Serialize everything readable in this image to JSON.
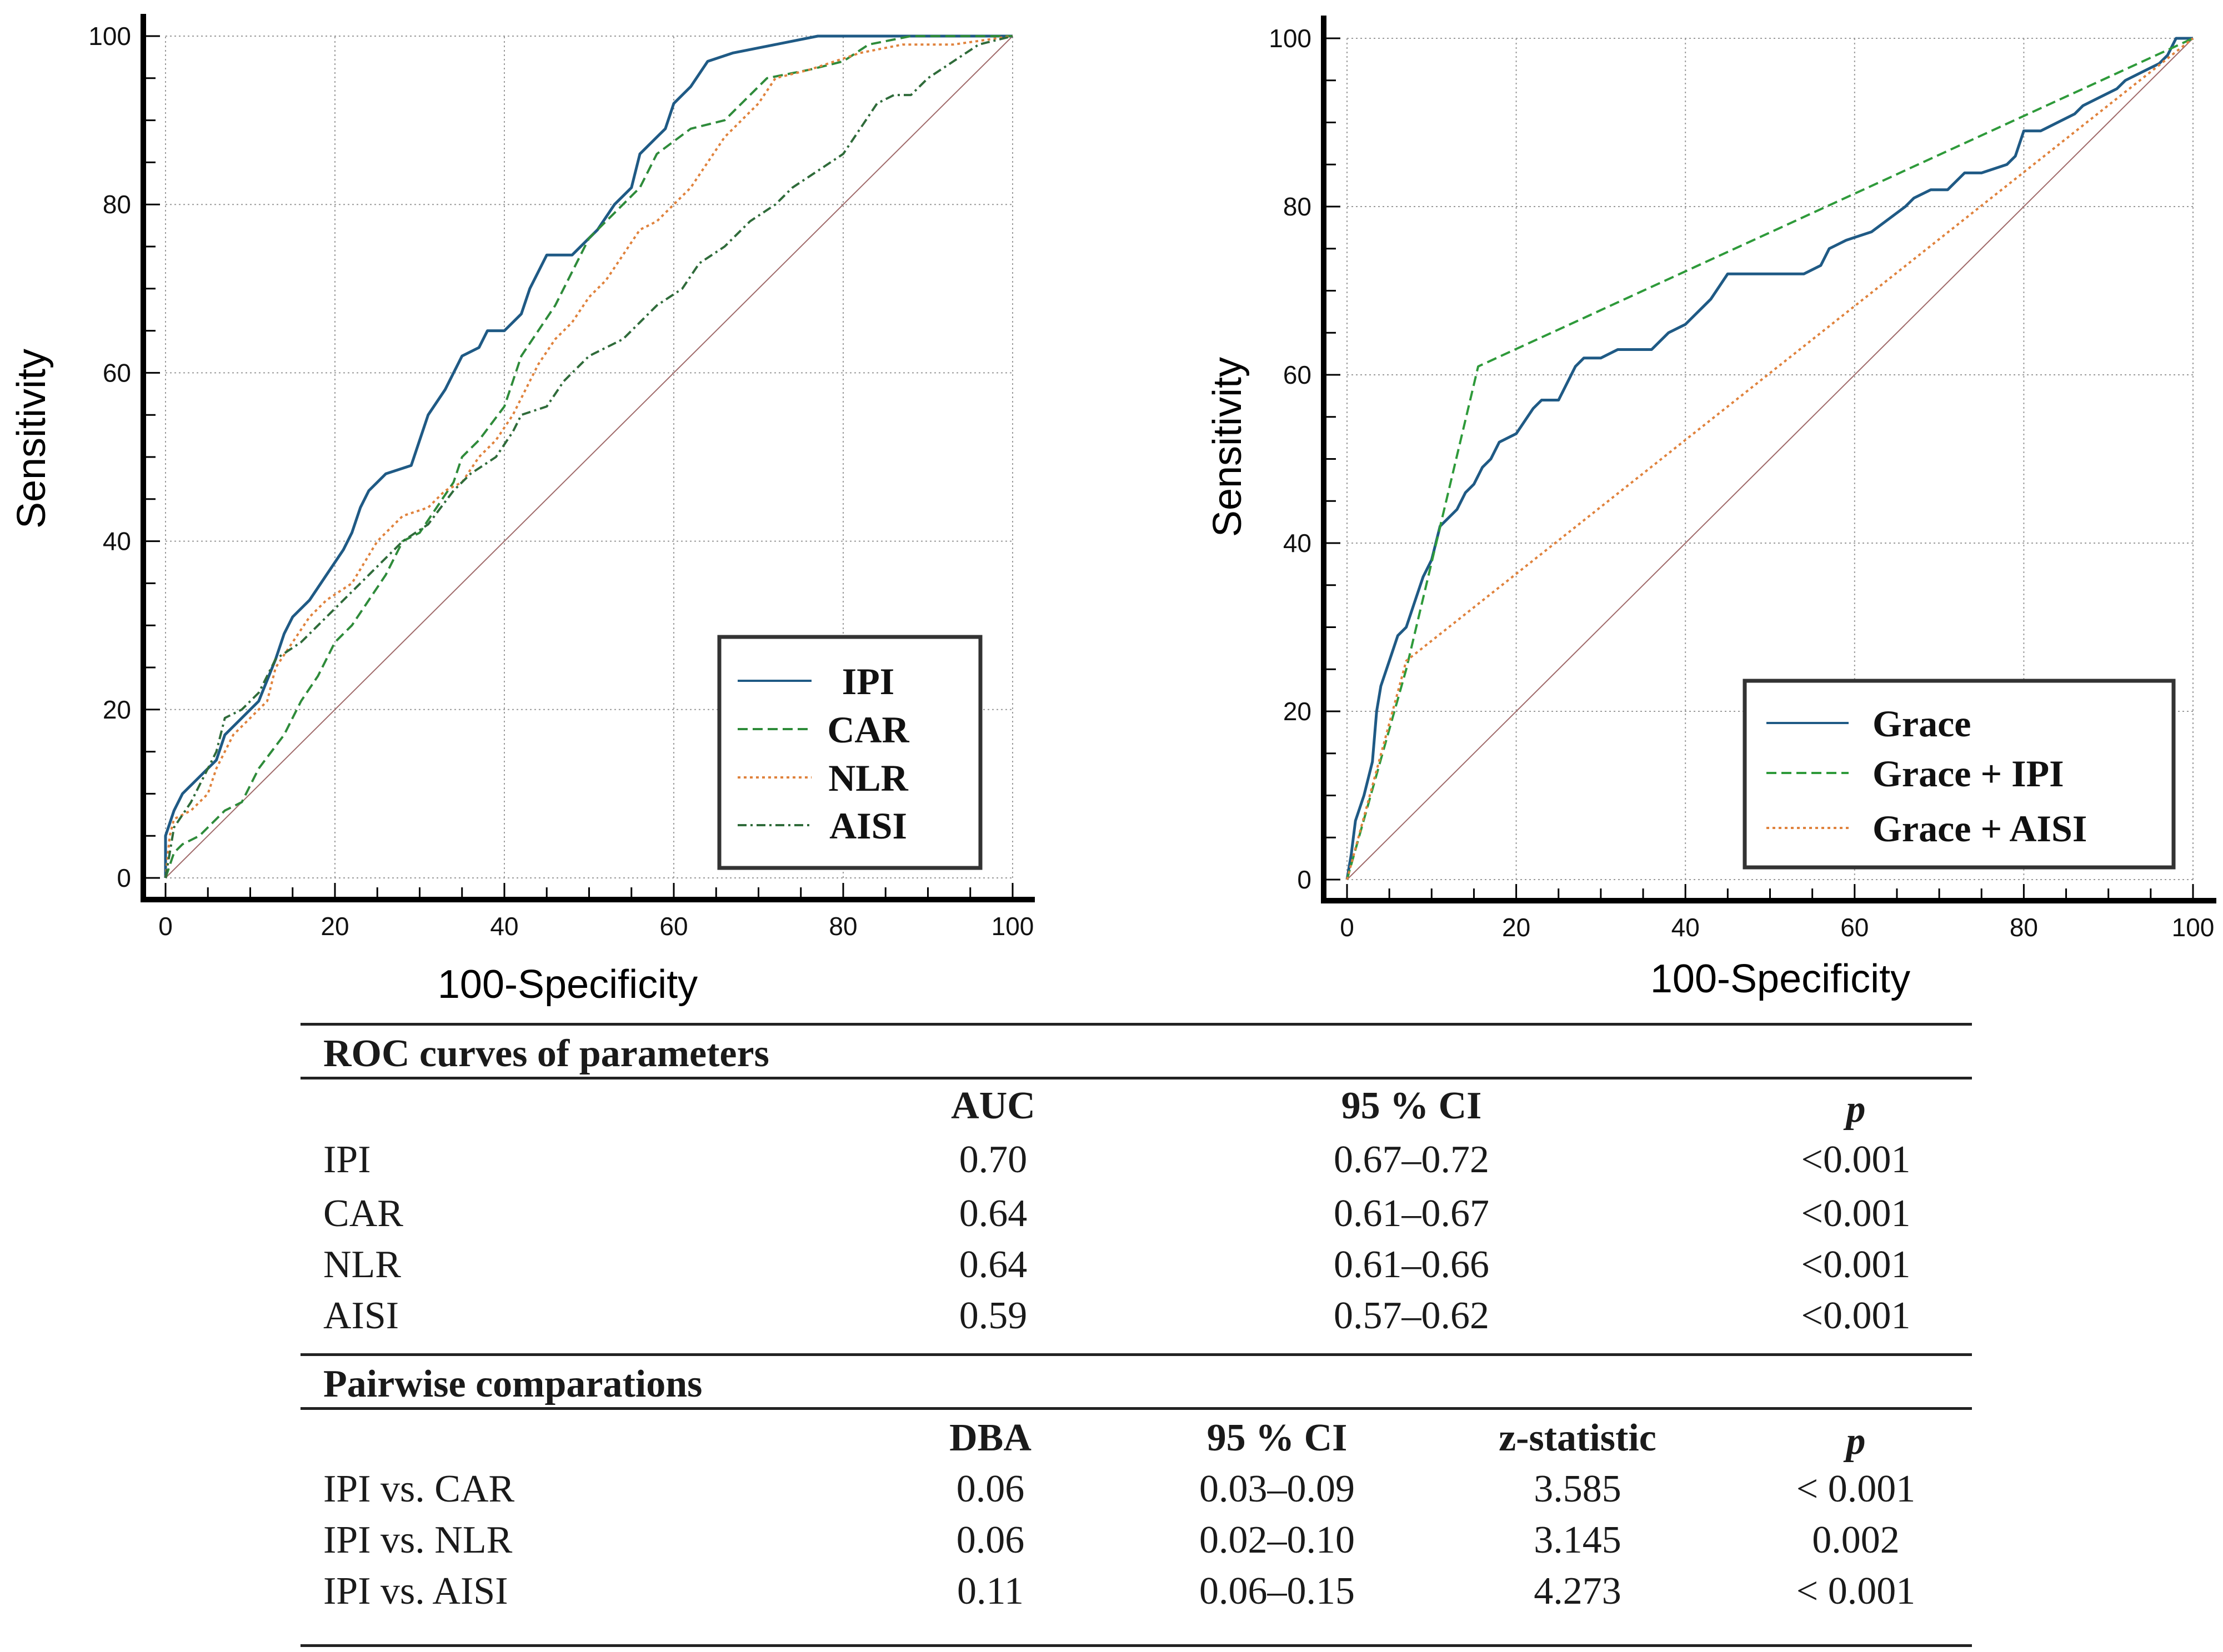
{
  "colors": {
    "ipi": "#1f5a85",
    "car": "#2e8b3a",
    "nlr": "#e0823c",
    "aisi": "#2f6b3a",
    "grace": "#1f5a85",
    "grace_ipi": "#2e9a3a",
    "grace_aisi": "#e0823c",
    "diagonal": "#a06a6a",
    "grid": "#9a9a9a",
    "axis": "#000000"
  },
  "chart_data": [
    {
      "type": "line",
      "xlabel": "100-Specificity",
      "ylabel": "Sensitivity",
      "xlim": [
        0,
        100
      ],
      "ylim": [
        0,
        100
      ],
      "xticks": [
        "0",
        "20",
        "40",
        "60",
        "80",
        "100"
      ],
      "yticks": [
        "0",
        "20",
        "40",
        "60",
        "80",
        "100"
      ],
      "grid": true,
      "legend_position": "bottom-right",
      "series": [
        {
          "name": "IPI",
          "key": "ipi",
          "dash": "solid",
          "points": [
            [
              0,
              0
            ],
            [
              0,
              5
            ],
            [
              1,
              8
            ],
            [
              2,
              10
            ],
            [
              4,
              12
            ],
            [
              6,
              14
            ],
            [
              7,
              17
            ],
            [
              9,
              19
            ],
            [
              11,
              21
            ],
            [
              13,
              26
            ],
            [
              14,
              29
            ],
            [
              15,
              31
            ],
            [
              17,
              33
            ],
            [
              19,
              36
            ],
            [
              21,
              39
            ],
            [
              22,
              41
            ],
            [
              23,
              44
            ],
            [
              24,
              46
            ],
            [
              26,
              48
            ],
            [
              29,
              49
            ],
            [
              30,
              52
            ],
            [
              31,
              55
            ],
            [
              33,
              58
            ],
            [
              35,
              62
            ],
            [
              37,
              63
            ],
            [
              38,
              65
            ],
            [
              40,
              65
            ],
            [
              42,
              67
            ],
            [
              43,
              70
            ],
            [
              45,
              74
            ],
            [
              48,
              74
            ],
            [
              51,
              77
            ],
            [
              53,
              80
            ],
            [
              55,
              82
            ],
            [
              56,
              86
            ],
            [
              58,
              88
            ],
            [
              59,
              89
            ],
            [
              60,
              92
            ],
            [
              62,
              94
            ],
            [
              64,
              97
            ],
            [
              67,
              98
            ],
            [
              72,
              99
            ],
            [
              77,
              100
            ],
            [
              100,
              100
            ]
          ]
        },
        {
          "name": "CAR",
          "key": "car",
          "dash": "dashed",
          "points": [
            [
              0,
              0
            ],
            [
              1,
              3
            ],
            [
              2,
              4
            ],
            [
              4,
              5
            ],
            [
              5,
              6
            ],
            [
              7,
              8
            ],
            [
              9,
              9
            ],
            [
              11,
              13
            ],
            [
              14,
              17
            ],
            [
              16,
              21
            ],
            [
              18,
              24
            ],
            [
              20,
              28
            ],
            [
              22,
              30
            ],
            [
              24,
              33
            ],
            [
              26,
              36
            ],
            [
              28,
              40
            ],
            [
              30,
              41
            ],
            [
              32,
              44
            ],
            [
              34,
              47
            ],
            [
              35,
              50
            ],
            [
              37,
              52
            ],
            [
              40,
              56
            ],
            [
              41,
              59
            ],
            [
              42,
              62
            ],
            [
              44,
              65
            ],
            [
              46,
              68
            ],
            [
              48,
              72
            ],
            [
              50,
              76
            ],
            [
              53,
              79
            ],
            [
              56,
              82
            ],
            [
              58,
              86
            ],
            [
              62,
              89
            ],
            [
              66,
              90
            ],
            [
              69,
              93
            ],
            [
              71,
              95
            ],
            [
              76,
              96
            ],
            [
              80,
              97
            ],
            [
              83,
              99
            ],
            [
              88,
              100
            ],
            [
              100,
              100
            ]
          ]
        },
        {
          "name": "NLR",
          "key": "nlr",
          "dash": "dotted",
          "points": [
            [
              0,
              0
            ],
            [
              0.5,
              5
            ],
            [
              1,
              7
            ],
            [
              3,
              8
            ],
            [
              5,
              10
            ],
            [
              6,
              13
            ],
            [
              8,
              17
            ],
            [
              10,
              19
            ],
            [
              12,
              21
            ],
            [
              13,
              25
            ],
            [
              15,
              28
            ],
            [
              17,
              31
            ],
            [
              19,
              33
            ],
            [
              22,
              35
            ],
            [
              25,
              40
            ],
            [
              28,
              43
            ],
            [
              31,
              44
            ],
            [
              33,
              46
            ],
            [
              35,
              47
            ],
            [
              37,
              50
            ],
            [
              39,
              52
            ],
            [
              41,
              55
            ],
            [
              42,
              57
            ],
            [
              44,
              61
            ],
            [
              46,
              64
            ],
            [
              48,
              66
            ],
            [
              50,
              69
            ],
            [
              52,
              71
            ],
            [
              54,
              74
            ],
            [
              56,
              77
            ],
            [
              58,
              78
            ],
            [
              60,
              80
            ],
            [
              62,
              82
            ],
            [
              64,
              85
            ],
            [
              66,
              88
            ],
            [
              68,
              90
            ],
            [
              70,
              92
            ],
            [
              72,
              95
            ],
            [
              76,
              96
            ],
            [
              79,
              97
            ],
            [
              82,
              98
            ],
            [
              87,
              99
            ],
            [
              93,
              99
            ],
            [
              100,
              100
            ]
          ]
        },
        {
          "name": "AISI",
          "key": "aisi",
          "dash": "dashdot",
          "points": [
            [
              0,
              0
            ],
            [
              1,
              6
            ],
            [
              3,
              9
            ],
            [
              5,
              13
            ],
            [
              6,
              15
            ],
            [
              7,
              19
            ],
            [
              9,
              20
            ],
            [
              11,
              22
            ],
            [
              13,
              26
            ],
            [
              16,
              28
            ],
            [
              19,
              31
            ],
            [
              22,
              34
            ],
            [
              25,
              37
            ],
            [
              28,
              40
            ],
            [
              31,
              42
            ],
            [
              34,
              46
            ],
            [
              36,
              48
            ],
            [
              39,
              50
            ],
            [
              41,
              53
            ],
            [
              42,
              55
            ],
            [
              45,
              56
            ],
            [
              47,
              59
            ],
            [
              50,
              62
            ],
            [
              54,
              64
            ],
            [
              56,
              66
            ],
            [
              58,
              68
            ],
            [
              61,
              70
            ],
            [
              63,
              73
            ],
            [
              66,
              75
            ],
            [
              69,
              78
            ],
            [
              72,
              80
            ],
            [
              74,
              82
            ],
            [
              77,
              84
            ],
            [
              80,
              86
            ],
            [
              82,
              89
            ],
            [
              84,
              92
            ],
            [
              86,
              93
            ],
            [
              88,
              93
            ],
            [
              90,
              95
            ],
            [
              93,
              97
            ],
            [
              96,
              99
            ],
            [
              100,
              100
            ]
          ]
        }
      ]
    },
    {
      "type": "line",
      "xlabel": "100-Specificity",
      "ylabel": "Sensitivity",
      "xlim": [
        0,
        100
      ],
      "ylim": [
        0,
        100
      ],
      "xticks": [
        "0",
        "20",
        "40",
        "60",
        "80",
        "100"
      ],
      "yticks": [
        "0",
        "20",
        "40",
        "60",
        "80",
        "100"
      ],
      "grid": true,
      "legend_position": "bottom-right",
      "series": [
        {
          "name": "Grace",
          "key": "grace",
          "dash": "solid",
          "points": [
            [
              0,
              0
            ],
            [
              0.5,
              3
            ],
            [
              1,
              7
            ],
            [
              2,
              10
            ],
            [
              3,
              14
            ],
            [
              3.5,
              20
            ],
            [
              4,
              23
            ],
            [
              5,
              26
            ],
            [
              6,
              29
            ],
            [
              7,
              30
            ],
            [
              8,
              33
            ],
            [
              9,
              36
            ],
            [
              10,
              38
            ],
            [
              11,
              42
            ],
            [
              12,
              43
            ],
            [
              13,
              44
            ],
            [
              14,
              46
            ],
            [
              15,
              47
            ],
            [
              16,
              49
            ],
            [
              17,
              50
            ],
            [
              18,
              52
            ],
            [
              20,
              53
            ],
            [
              22,
              56
            ],
            [
              23,
              57
            ],
            [
              25,
              57
            ],
            [
              27,
              61
            ],
            [
              28,
              62
            ],
            [
              30,
              62
            ],
            [
              32,
              63
            ],
            [
              36,
              63
            ],
            [
              38,
              65
            ],
            [
              40,
              66
            ],
            [
              42,
              68
            ],
            [
              43,
              69
            ],
            [
              45,
              72
            ],
            [
              50,
              72
            ],
            [
              54,
              72
            ],
            [
              56,
              73
            ],
            [
              57,
              75
            ],
            [
              59,
              76
            ],
            [
              62,
              77
            ],
            [
              66,
              80
            ],
            [
              67,
              81
            ],
            [
              69,
              82
            ],
            [
              71,
              82
            ],
            [
              73,
              84
            ],
            [
              75,
              84
            ],
            [
              78,
              85
            ],
            [
              79,
              86
            ],
            [
              80,
              89
            ],
            [
              82,
              89
            ],
            [
              84,
              90
            ],
            [
              86,
              91
            ],
            [
              87,
              92
            ],
            [
              89,
              93
            ],
            [
              91,
              94
            ],
            [
              92,
              95
            ],
            [
              94,
              96
            ],
            [
              96,
              97
            ],
            [
              97,
              98
            ],
            [
              98,
              100
            ],
            [
              100,
              100
            ]
          ]
        },
        {
          "name": "Grace + IPI",
          "key": "grace_ipi",
          "dash": "dashed",
          "points": [
            [
              0,
              0
            ],
            [
              7,
              25
            ],
            [
              15.5,
              61
            ],
            [
              100,
              100
            ]
          ]
        },
        {
          "name": "Grace + AISI",
          "key": "grace_aisi",
          "dash": "dotted",
          "points": [
            [
              0,
              0
            ],
            [
              7,
              26
            ],
            [
              100,
              100
            ]
          ]
        }
      ]
    }
  ],
  "table": {
    "roc_title": "ROC curves of parameters",
    "roc_headers": [
      "AUC",
      "95 % CI",
      "p"
    ],
    "roc_rows": [
      [
        "IPI",
        "0.70",
        "0.67–0.72",
        "<0.001"
      ],
      [
        "CAR",
        "0.64",
        "0.61–0.67",
        "<0.001"
      ],
      [
        "NLR",
        "0.64",
        "0.61–0.66",
        "<0.001"
      ],
      [
        "AISI",
        "0.59",
        "0.57–0.62",
        "<0.001"
      ]
    ],
    "pair_title": "Pairwise comparations",
    "pair_headers": [
      "DBA",
      "95 % CI",
      "z-statistic",
      "p"
    ],
    "pair_rows": [
      [
        "IPI vs. CAR",
        "0.06",
        "0.03–0.09",
        "3.585",
        "< 0.001"
      ],
      [
        "IPI vs. NLR",
        "0.06",
        "0.02–0.10",
        "3.145",
        "0.002"
      ],
      [
        "IPI vs. AISI",
        "0.11",
        "0.06–0.15",
        "4.273",
        "< 0.001"
      ]
    ]
  }
}
